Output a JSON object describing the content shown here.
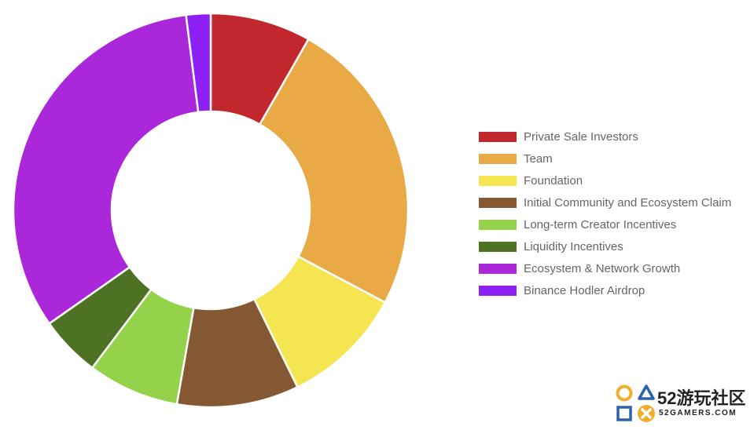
{
  "chart_data": {
    "type": "doughnut",
    "title": "",
    "series": [
      {
        "values": [
          8.25,
          24.5,
          10,
          10,
          7.5,
          5,
          32.75,
          2
        ]
      }
    ],
    "categories": [
      "Private Sale Investors",
      "Team",
      "Foundation",
      "Initial Community and Ecosystem Claim",
      "Long-term Creator Incentives",
      "Liquidity Incentives",
      "Ecosystem & Network Growth",
      "Binance Hodler Airdrop"
    ],
    "colors": [
      "#c1272d",
      "#e9a945",
      "#f4e551",
      "#845832",
      "#93d24a",
      "#4e7223",
      "#ab27da",
      "#8d21f5"
    ],
    "legend_position": "right",
    "start_angle_deg": 0,
    "direction": "clockwise"
  },
  "watermark": {
    "title": "52游玩社区",
    "subtitle": "52GAMERS.COM",
    "icons": [
      "circle-icon",
      "triangle-icon",
      "square-icon",
      "cross-icon"
    ]
  }
}
